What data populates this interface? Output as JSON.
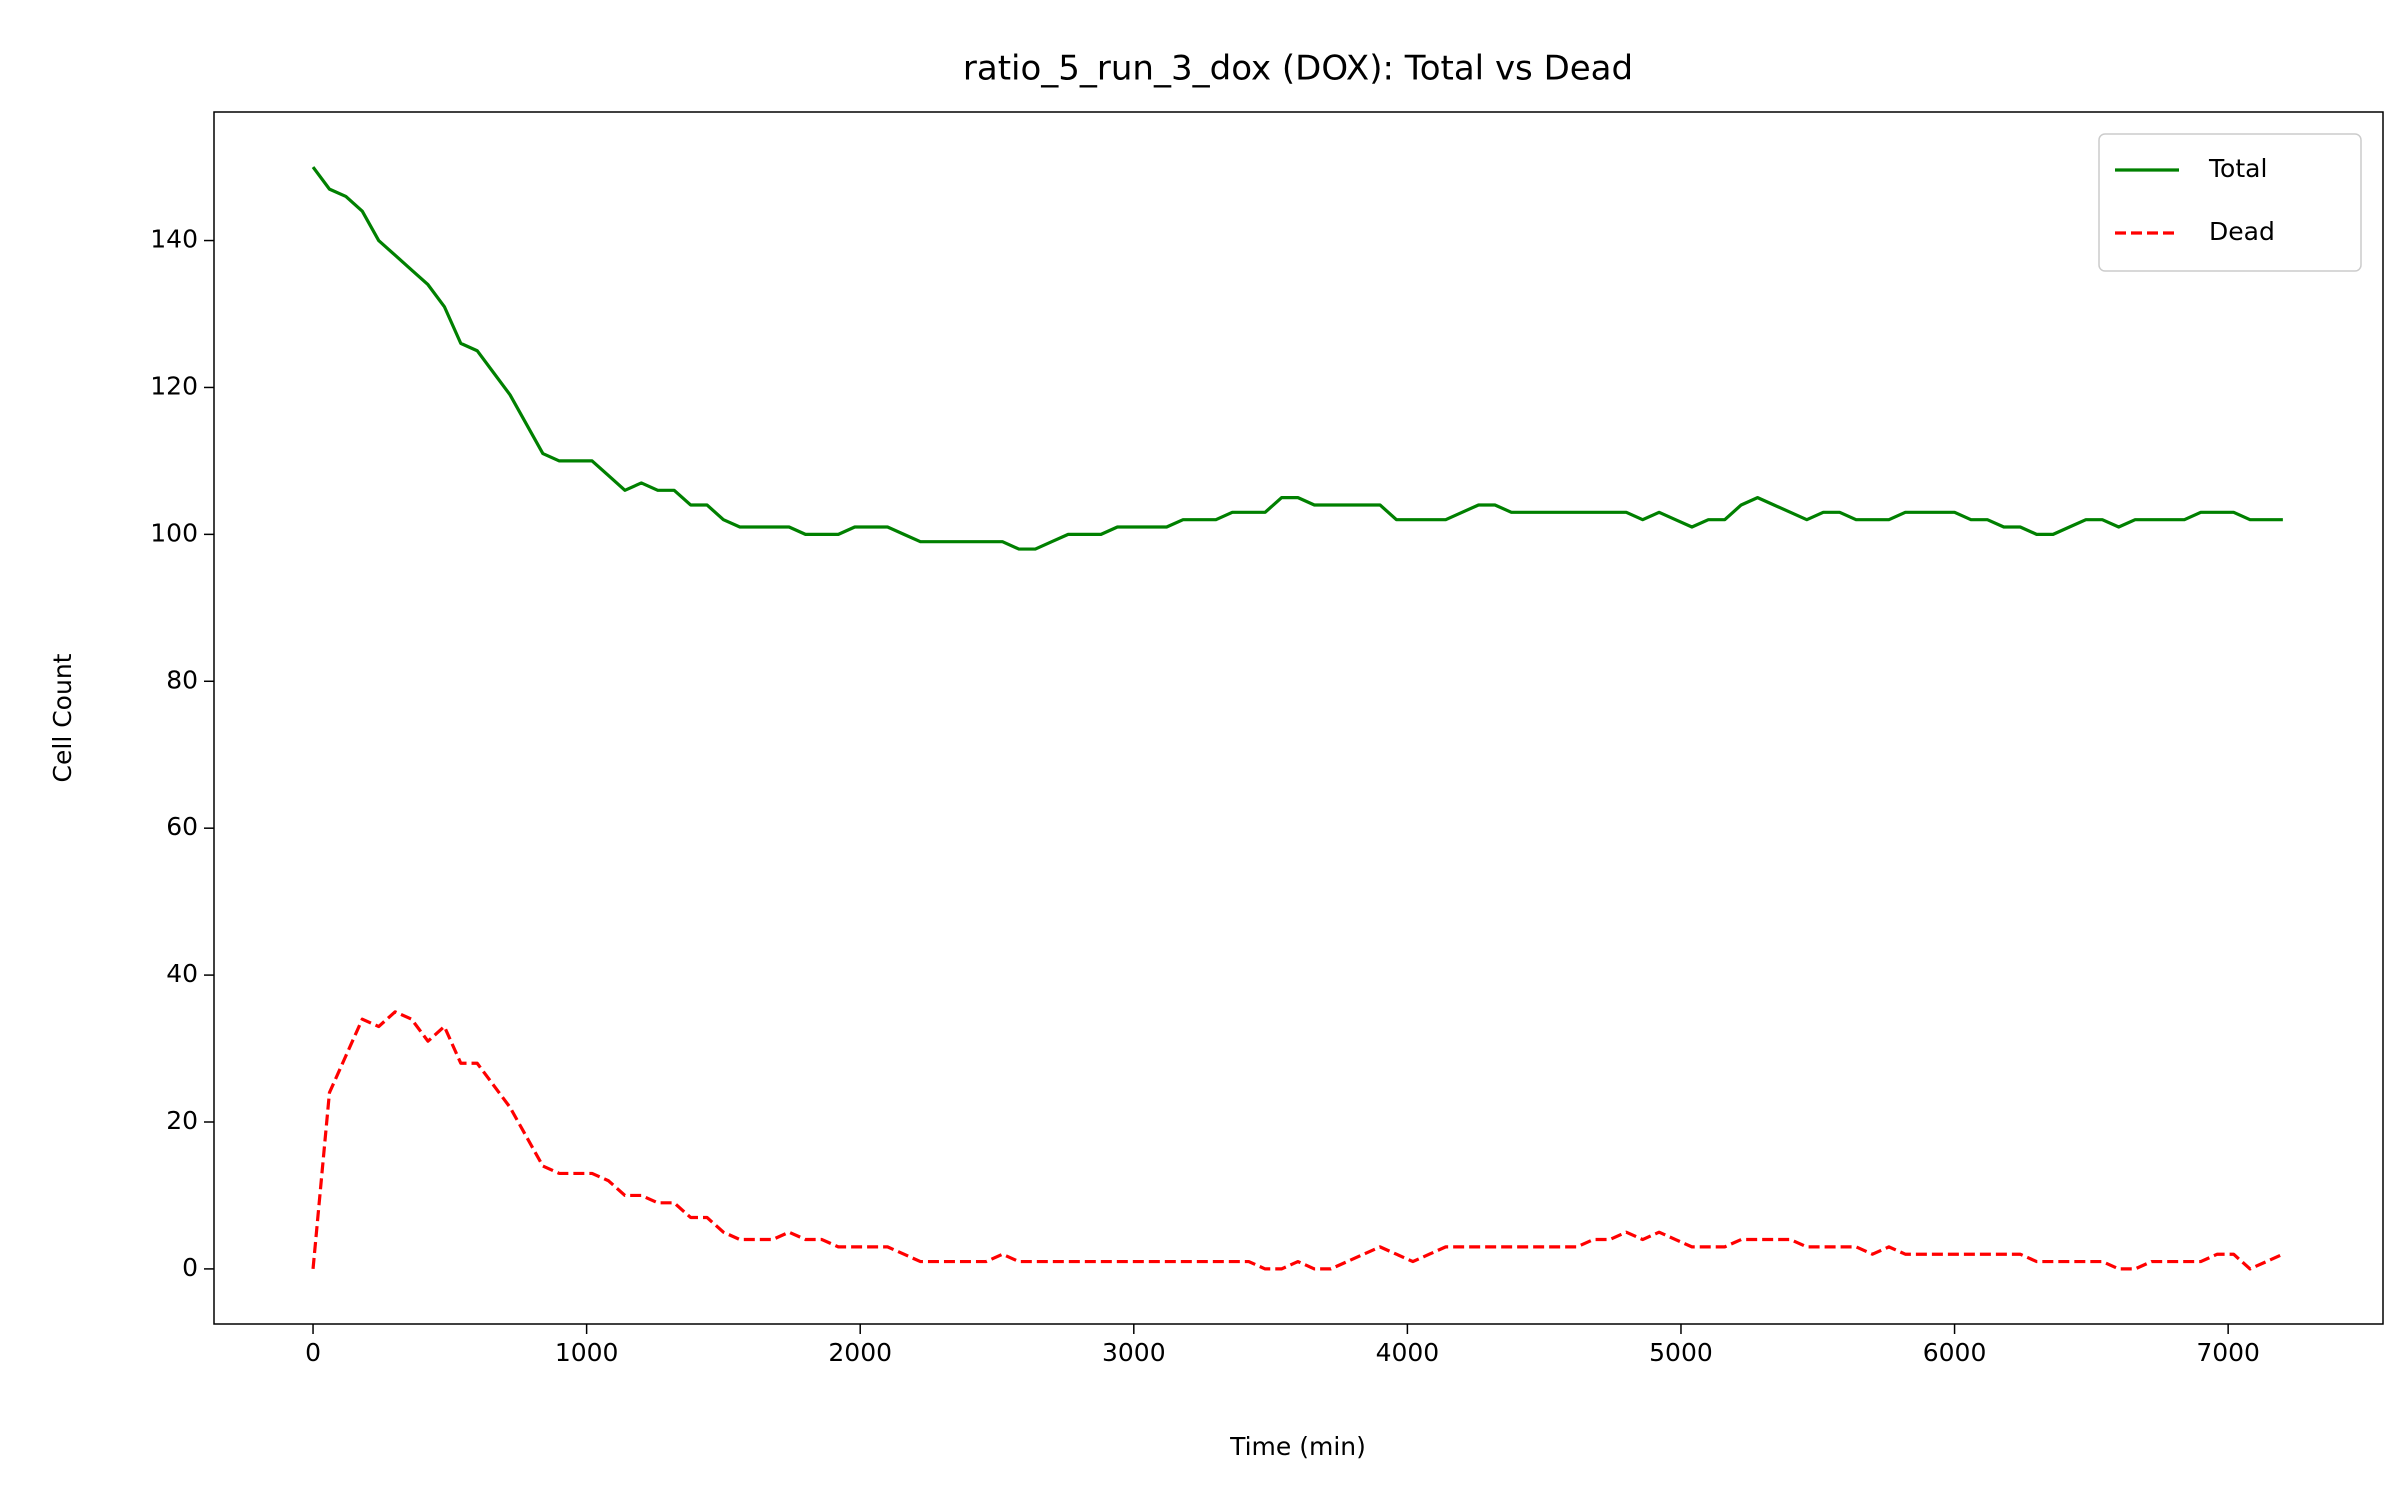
{
  "chart_data": {
    "type": "line",
    "title": "ratio_5_run_3_dox (DOX): Total vs Dead",
    "x_label": "Time (min)",
    "y_label": "Cell Count",
    "x": [
      0,
      60,
      120,
      180,
      240,
      300,
      360,
      420,
      480,
      540,
      600,
      660,
      720,
      780,
      840,
      900,
      960,
      1020,
      1080,
      1140,
      1200,
      1260,
      1320,
      1380,
      1440,
      1500,
      1560,
      1620,
      1680,
      1740,
      1800,
      1860,
      1920,
      1980,
      2040,
      2100,
      2160,
      2220,
      2280,
      2340,
      2400,
      2460,
      2520,
      2580,
      2640,
      2700,
      2760,
      2820,
      2880,
      2940,
      3000,
      3060,
      3120,
      3180,
      3240,
      3300,
      3360,
      3420,
      3480,
      3540,
      3600,
      3660,
      3720,
      3780,
      3840,
      3900,
      3960,
      4020,
      4080,
      4140,
      4200,
      4260,
      4320,
      4380,
      4440,
      4500,
      4560,
      4620,
      4680,
      4740,
      4800,
      4860,
      4920,
      4980,
      5040,
      5100,
      5160,
      5220,
      5280,
      5340,
      5400,
      5460,
      5520,
      5580,
      5640,
      5700,
      5760,
      5820,
      5880,
      5940,
      6000,
      6060,
      6120,
      6180,
      6240,
      6300,
      6360,
      6420,
      6480,
      6540,
      6600,
      6660,
      6720,
      6780,
      6840,
      6900,
      6960,
      7020,
      7080,
      7140,
      7200
    ],
    "series": [
      {
        "name": "Total",
        "color": "#008000",
        "linestyle": "solid",
        "values": [
          150,
          147,
          146,
          144,
          140,
          138,
          136,
          134,
          131,
          126,
          125,
          122,
          119,
          115,
          111,
          110,
          110,
          110,
          108,
          106,
          107,
          106,
          106,
          104,
          104,
          102,
          101,
          101,
          101,
          101,
          100,
          100,
          100,
          101,
          101,
          101,
          100,
          99,
          99,
          99,
          99,
          99,
          99,
          98,
          98,
          99,
          100,
          100,
          100,
          101,
          101,
          101,
          101,
          102,
          102,
          102,
          103,
          103,
          103,
          105,
          105,
          104,
          104,
          104,
          104,
          104,
          102,
          102,
          102,
          102,
          103,
          104,
          104,
          103,
          103,
          103,
          103,
          103,
          103,
          103,
          103,
          102,
          103,
          102,
          101,
          102,
          102,
          104,
          105,
          104,
          103,
          102,
          103,
          103,
          102,
          102,
          102,
          103,
          103,
          103,
          103,
          102,
          102,
          101,
          101,
          100,
          100,
          101,
          102,
          102,
          101,
          102,
          102,
          102,
          102,
          103,
          103,
          103,
          102,
          102,
          102
        ]
      },
      {
        "name": "Dead",
        "color": "#ff0000",
        "linestyle": "dashed",
        "values": [
          0,
          24,
          29,
          34,
          33,
          35,
          34,
          31,
          33,
          28,
          28,
          25,
          22,
          18,
          14,
          13,
          13,
          13,
          12,
          10,
          10,
          9,
          9,
          7,
          7,
          5,
          4,
          4,
          4,
          5,
          4,
          4,
          3,
          3,
          3,
          3,
          2,
          1,
          1,
          1,
          1,
          1,
          2,
          1,
          1,
          1,
          1,
          1,
          1,
          1,
          1,
          1,
          1,
          1,
          1,
          1,
          1,
          1,
          0,
          0,
          1,
          0,
          0,
          1,
          2,
          3,
          2,
          1,
          2,
          3,
          3,
          3,
          3,
          3,
          3,
          3,
          3,
          3,
          4,
          4,
          5,
          4,
          5,
          4,
          3,
          3,
          3,
          4,
          4,
          4,
          4,
          3,
          3,
          3,
          3,
          2,
          3,
          2,
          2,
          2,
          2,
          2,
          2,
          2,
          2,
          1,
          1,
          1,
          1,
          1,
          0,
          0,
          1,
          1,
          1,
          1,
          2,
          2,
          0,
          1,
          2
        ]
      }
    ],
    "xlim": [
      -362,
      7566
    ],
    "ylim": [
      -7.5,
      157.5
    ],
    "xticks": [
      0,
      1000,
      2000,
      3000,
      4000,
      5000,
      6000,
      7000
    ],
    "yticks": [
      0,
      20,
      40,
      60,
      80,
      100,
      120,
      140
    ],
    "legend": "upper right",
    "grid": false
  }
}
